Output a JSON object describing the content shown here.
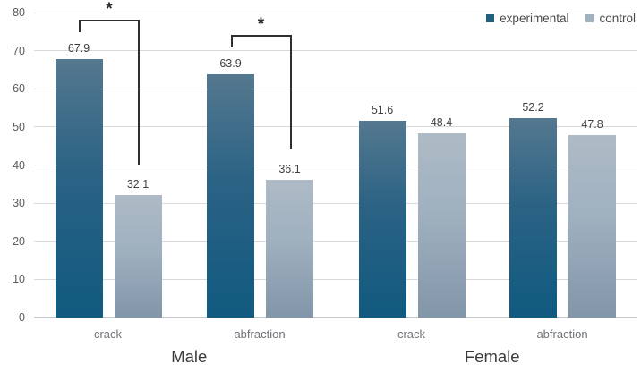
{
  "chart_data": {
    "type": "bar",
    "title": "",
    "xlabel": "",
    "ylabel": "",
    "ylim": [
      0,
      80
    ],
    "ytick_step": 10,
    "grid": true,
    "legend_position": "top-right",
    "categories": [
      "crack",
      "abfraction",
      "crack",
      "abfraction"
    ],
    "group_labels": [
      "Male",
      "Female"
    ],
    "group_of_category": [
      0,
      0,
      1,
      1
    ],
    "series": [
      {
        "name": "experimental",
        "values": [
          67.9,
          63.9,
          51.6,
          52.2
        ],
        "color_top": "#54788f",
        "color_mid": "#2a6284",
        "color_bottom": "#115a80",
        "legend_color": "#20607f"
      },
      {
        "name": "control",
        "values": [
          32.1,
          36.1,
          48.4,
          47.8
        ],
        "color_top": "#aebbc6",
        "color_mid": "#9fb0bf",
        "color_bottom": "#8296a9",
        "legend_color": "#9fb2c0"
      }
    ],
    "significance_markers": [
      {
        "category_index": 0,
        "label": "*"
      },
      {
        "category_index": 1,
        "label": "*"
      }
    ],
    "colors": {
      "background": "#ffffff",
      "gridline": "#d9d9d9",
      "axis_line": "#c6c9cc",
      "tick_label": "#5a5a5a",
      "value_label": "#404040",
      "category_label": "#6e7277",
      "group_label": "#3b3b3b",
      "legend_text": "#4a4a4a",
      "bracket": "#2e2e2e"
    }
  }
}
